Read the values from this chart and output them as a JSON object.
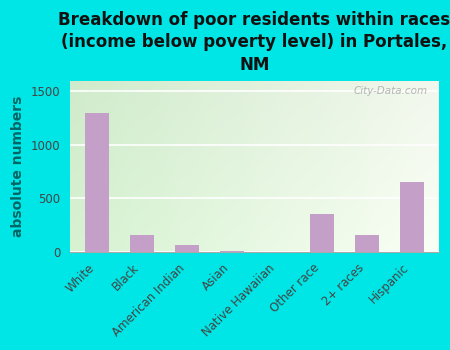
{
  "categories": [
    "White",
    "Black",
    "American Indian",
    "Asian",
    "Native Hawaiian",
    "Other race",
    "2+ races",
    "Hispanic"
  ],
  "values": [
    1300,
    155,
    65,
    3,
    0,
    350,
    155,
    650
  ],
  "bar_color": "#c4a0c8",
  "title": "Breakdown of poor residents within races\n(income below poverty level) in Portales,\nNM",
  "ylabel": "absolute numbers",
  "ylim": [
    0,
    1600
  ],
  "yticks": [
    0,
    500,
    1000,
    1500
  ],
  "bg_color": "#00e5e5",
  "plot_bg_colors": [
    "#d8f0d0",
    "#f8fff4"
  ],
  "watermark": "City-Data.com",
  "title_fontsize": 12,
  "ylabel_fontsize": 10,
  "tick_fontsize": 8.5,
  "figsize": [
    4.5,
    3.5
  ],
  "dpi": 100
}
